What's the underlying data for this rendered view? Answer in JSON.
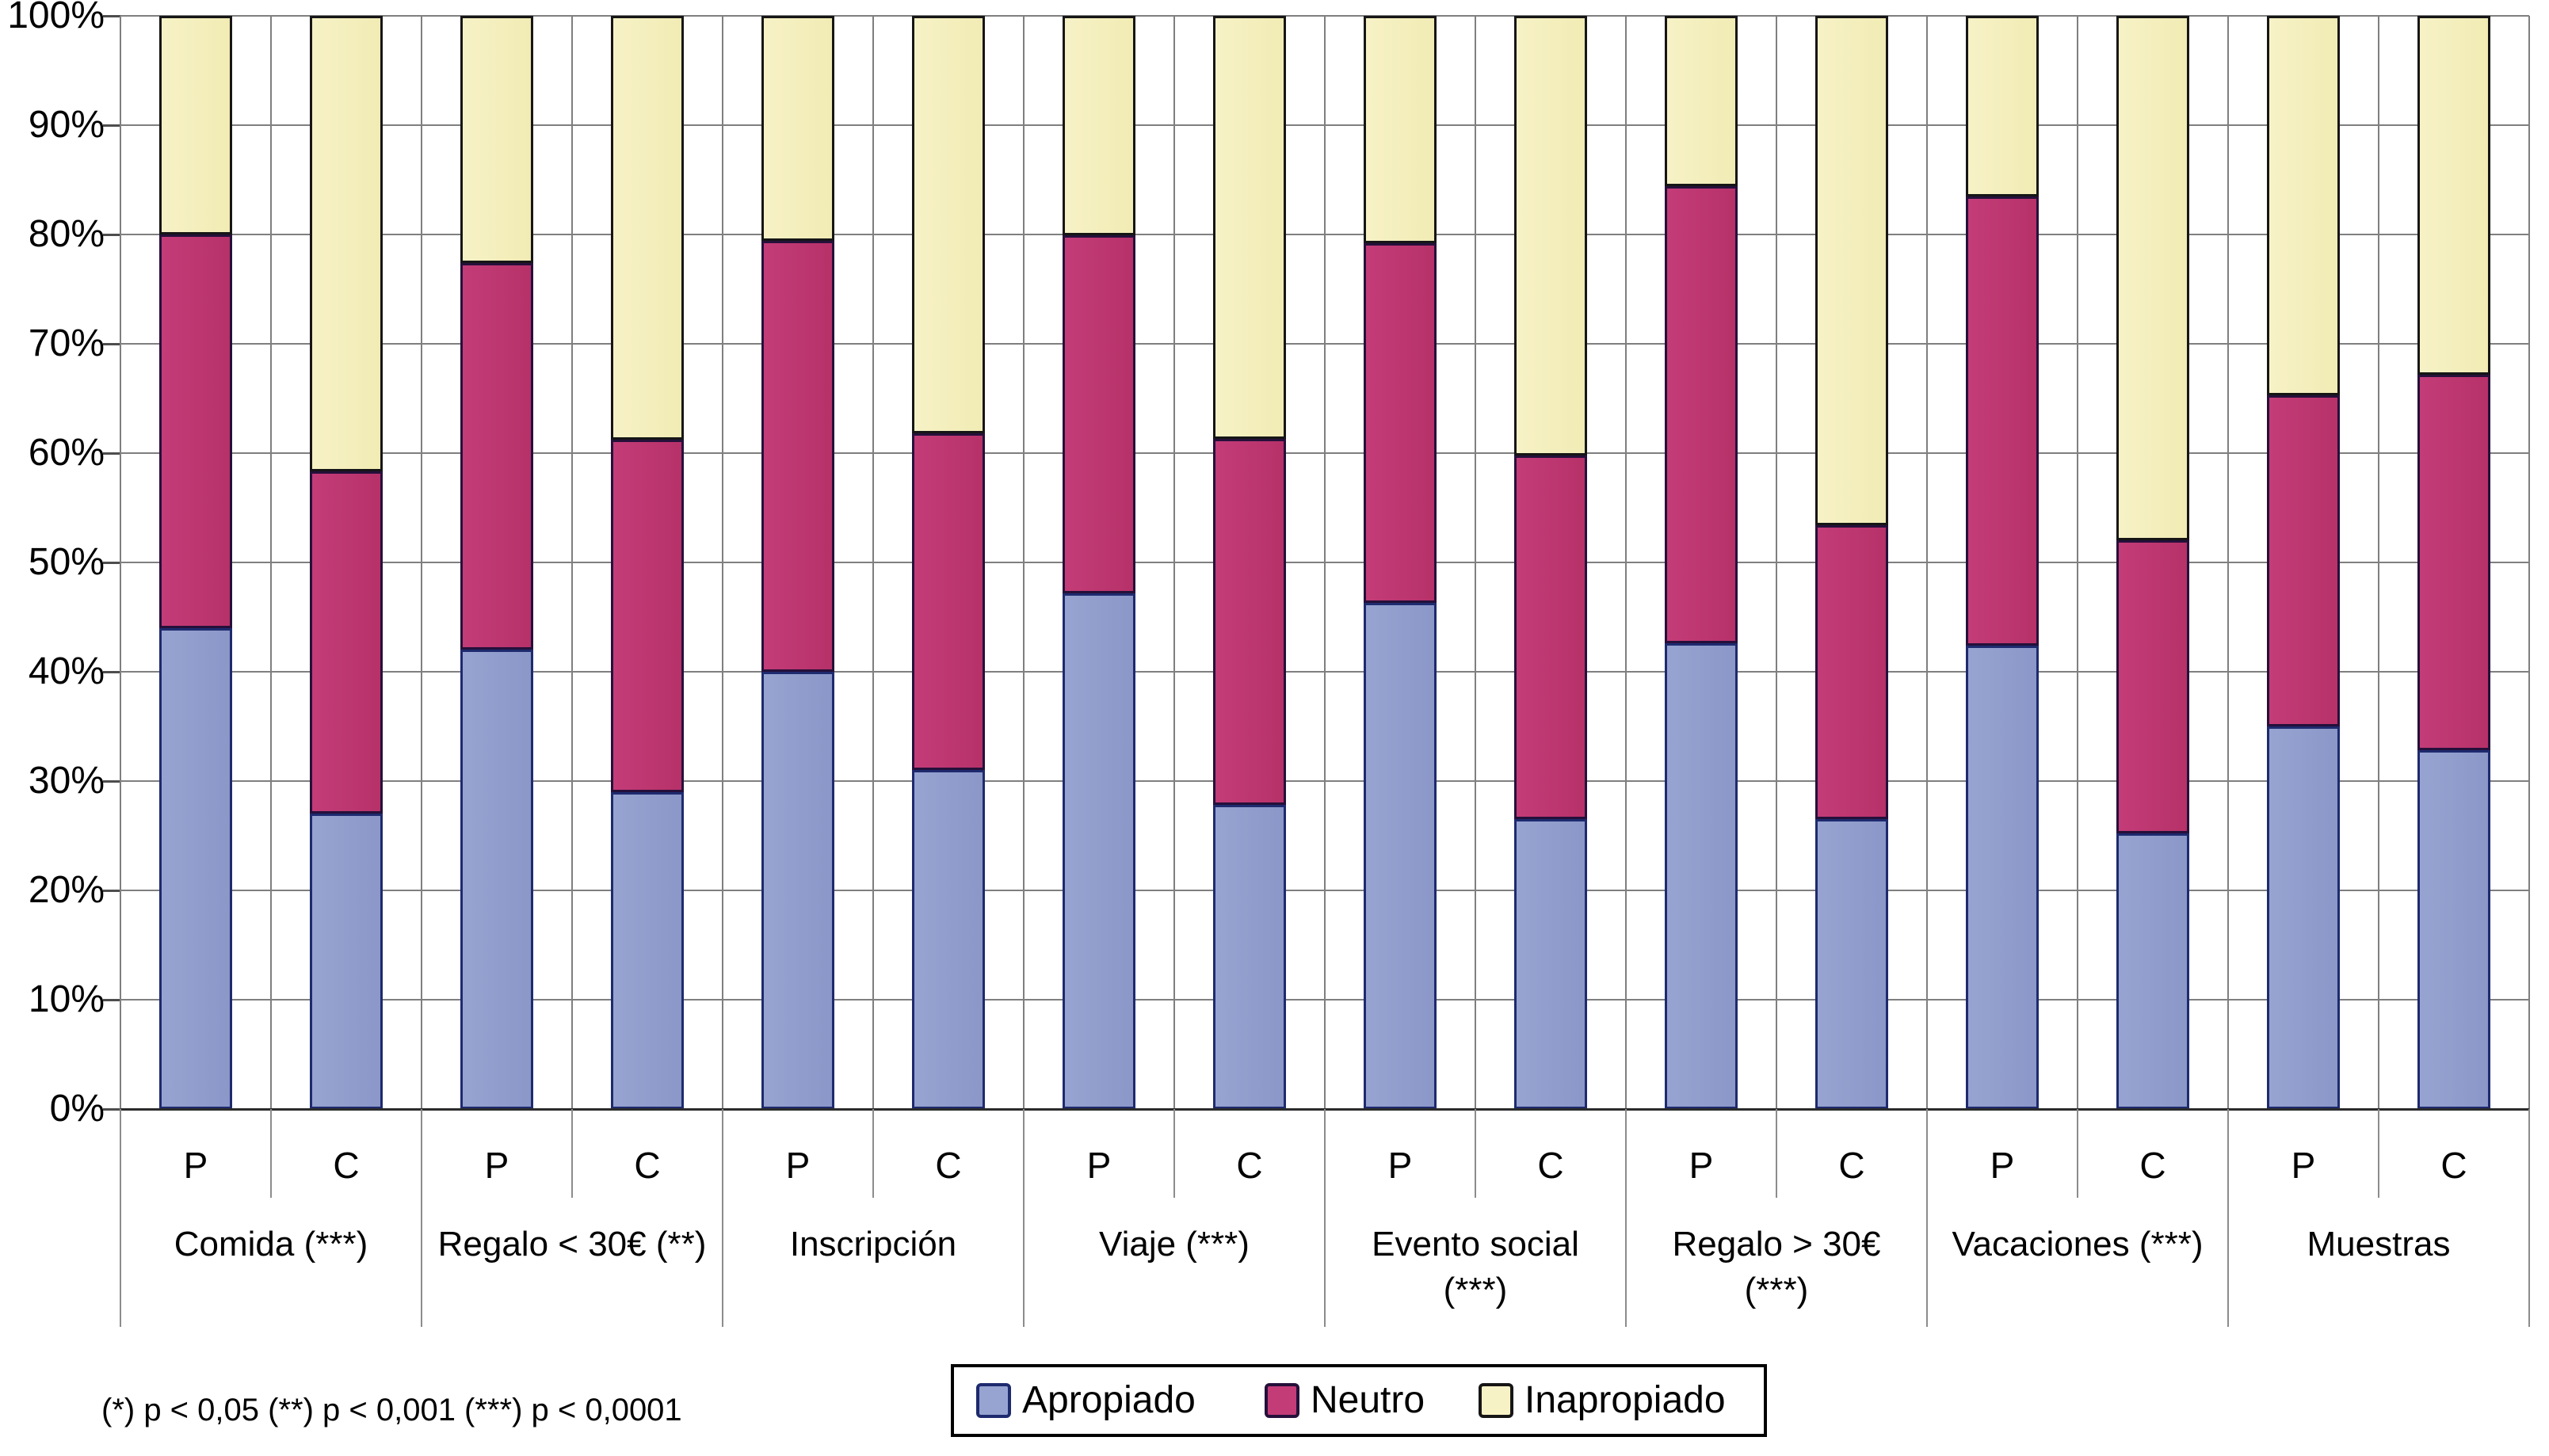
{
  "chart_data": {
    "type": "bar",
    "subtype": "stacked-percent-column",
    "title": "",
    "xlabel": "",
    "ylabel": "",
    "ylim": [
      0,
      100
    ],
    "grid": true,
    "legend_position": "bottom-center",
    "y_axis": {
      "ticks": [
        "0%",
        "10%",
        "20%",
        "30%",
        "40%",
        "50%",
        "60%",
        "70%",
        "80%",
        "90%",
        "100%"
      ]
    },
    "series": [
      {
        "name": "Apropiado",
        "fill": "#97A3D0",
        "fill2": "#8B97C8",
        "border": "#1E2A6E"
      },
      {
        "name": "Neutro",
        "fill": "#C33C78",
        "fill2": "#B73169",
        "border": "#25103A"
      },
      {
        "name": "Inapropiado",
        "fill": "#F7F2C6",
        "fill2": "#F1EBB4",
        "border": "#161616"
      }
    ],
    "bar_sublabels": [
      "P",
      "C"
    ],
    "groups": [
      {
        "category_lines": [
          "Comida (***)"
        ],
        "bars": [
          {
            "label": "P",
            "values": [
              44.0,
              36.0,
              20.0
            ]
          },
          {
            "label": "C",
            "values": [
              27.0,
              31.3,
              41.7
            ]
          }
        ]
      },
      {
        "category_lines": [
          "Regalo < 30€ (**)"
        ],
        "bars": [
          {
            "label": "P",
            "values": [
              42.0,
              35.4,
              22.6
            ]
          },
          {
            "label": "C",
            "values": [
              29.0,
              32.2,
              38.8
            ]
          }
        ]
      },
      {
        "category_lines": [
          "Inscripción"
        ],
        "bars": [
          {
            "label": "P",
            "values": [
              40.0,
              39.4,
              20.6
            ]
          },
          {
            "label": "C",
            "values": [
              31.0,
              30.8,
              38.2
            ]
          }
        ]
      },
      {
        "category_lines": [
          "Viaje (***)"
        ],
        "bars": [
          {
            "label": "P",
            "values": [
              47.2,
              32.7,
              20.1
            ]
          },
          {
            "label": "C",
            "values": [
              27.8,
              33.5,
              38.7
            ]
          }
        ]
      },
      {
        "category_lines": [
          "Evento social",
          "(***)"
        ],
        "bars": [
          {
            "label": "P",
            "values": [
              46.3,
              32.9,
              20.8
            ]
          },
          {
            "label": "C",
            "values": [
              26.5,
              33.3,
              40.2
            ]
          }
        ]
      },
      {
        "category_lines": [
          "Regalo > 30€",
          "(***)"
        ],
        "bars": [
          {
            "label": "P",
            "values": [
              42.6,
              41.8,
              15.6
            ]
          },
          {
            "label": "C",
            "values": [
              26.5,
              26.9,
              46.6
            ]
          }
        ]
      },
      {
        "category_lines": [
          "Vacaciones (***)"
        ],
        "bars": [
          {
            "label": "P",
            "values": [
              42.4,
              41.1,
              16.5
            ]
          },
          {
            "label": "C",
            "values": [
              25.2,
              26.8,
              48.0
            ]
          }
        ]
      },
      {
        "category_lines": [
          "Muestras"
        ],
        "bars": [
          {
            "label": "P",
            "values": [
              35.0,
              30.3,
              34.7
            ]
          },
          {
            "label": "C",
            "values": [
              32.8,
              34.4,
              32.8
            ]
          }
        ]
      }
    ],
    "footnote": "(*) p < 0,05 (**) p < 0,001 (***) p < 0,0001",
    "colors_meta": {
      "gridline": "#7f7f7f",
      "axis": "#2b2b2b",
      "text": "#000000",
      "background": "#ffffff"
    }
  }
}
